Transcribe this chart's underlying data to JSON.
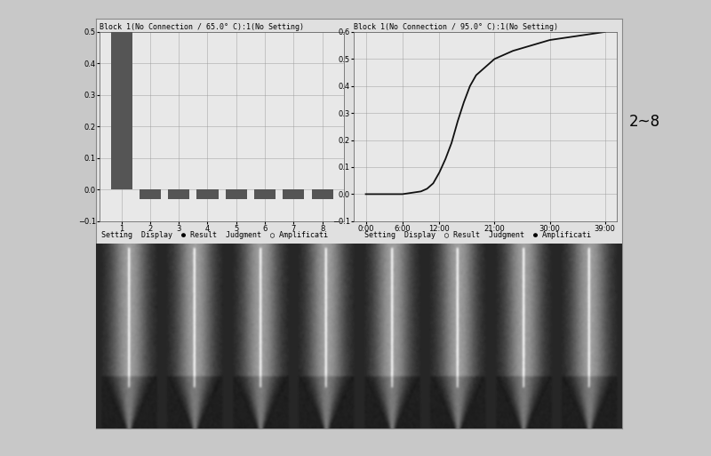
{
  "title_left": "Block 1(No Connection / 65.0° C):1(No Setting)",
  "title_right": "Block 1(No Connection / 95.0° C):1(No Setting)",
  "bar_categories": [
    1,
    2,
    3,
    4,
    5,
    6,
    7,
    8
  ],
  "bar_values": [
    0.5,
    -0.03,
    -0.03,
    -0.03,
    -0.03,
    -0.03,
    -0.03,
    -0.03
  ],
  "bar_ylim": [
    -0.1,
    0.5
  ],
  "bar_yticks": [
    -0.1,
    0.0,
    0.1,
    0.2,
    0.3,
    0.4,
    0.5
  ],
  "bar_color": "#555555",
  "curve_x": [
    0,
    3,
    6,
    9,
    10,
    11,
    12,
    13,
    14,
    15,
    16,
    17,
    18,
    21,
    24,
    27,
    30,
    33,
    36,
    39
  ],
  "curve_y": [
    0.0,
    0.0,
    0.0,
    0.01,
    0.02,
    0.04,
    0.08,
    0.13,
    0.19,
    0.27,
    0.34,
    0.4,
    0.44,
    0.5,
    0.53,
    0.55,
    0.57,
    0.58,
    0.59,
    0.6
  ],
  "curve_ylim": [
    -0.1,
    0.6
  ],
  "curve_yticks": [
    -0.1,
    0.0,
    0.1,
    0.2,
    0.3,
    0.4,
    0.5,
    0.6
  ],
  "curve_xticks": [
    0,
    6,
    12,
    21,
    30,
    39
  ],
  "curve_xticklabels": [
    "0:00",
    "6:00",
    "12:00",
    "21:00",
    "30:00",
    "39:00"
  ],
  "curve_color": "#111111",
  "annotation": "2~8",
  "outer_bg": "#c8c8c8",
  "inner_bg": "#e0e0e0",
  "chart_bg": "#e8e8e8",
  "toolbar_bg": "#cccccc",
  "photo_bg": "#1a1a1a",
  "grid_color": "#999999",
  "title_fontsize": 6,
  "tick_fontsize": 6,
  "toolbar_fontsize": 6,
  "annotation_fontsize": 12,
  "toolbar_text_left": "Setting  Display  ● Result  Judgment  ○ Amplificati",
  "toolbar_text_right": "Setting  Display  ○ Result  Judgment  ● Amplificati"
}
